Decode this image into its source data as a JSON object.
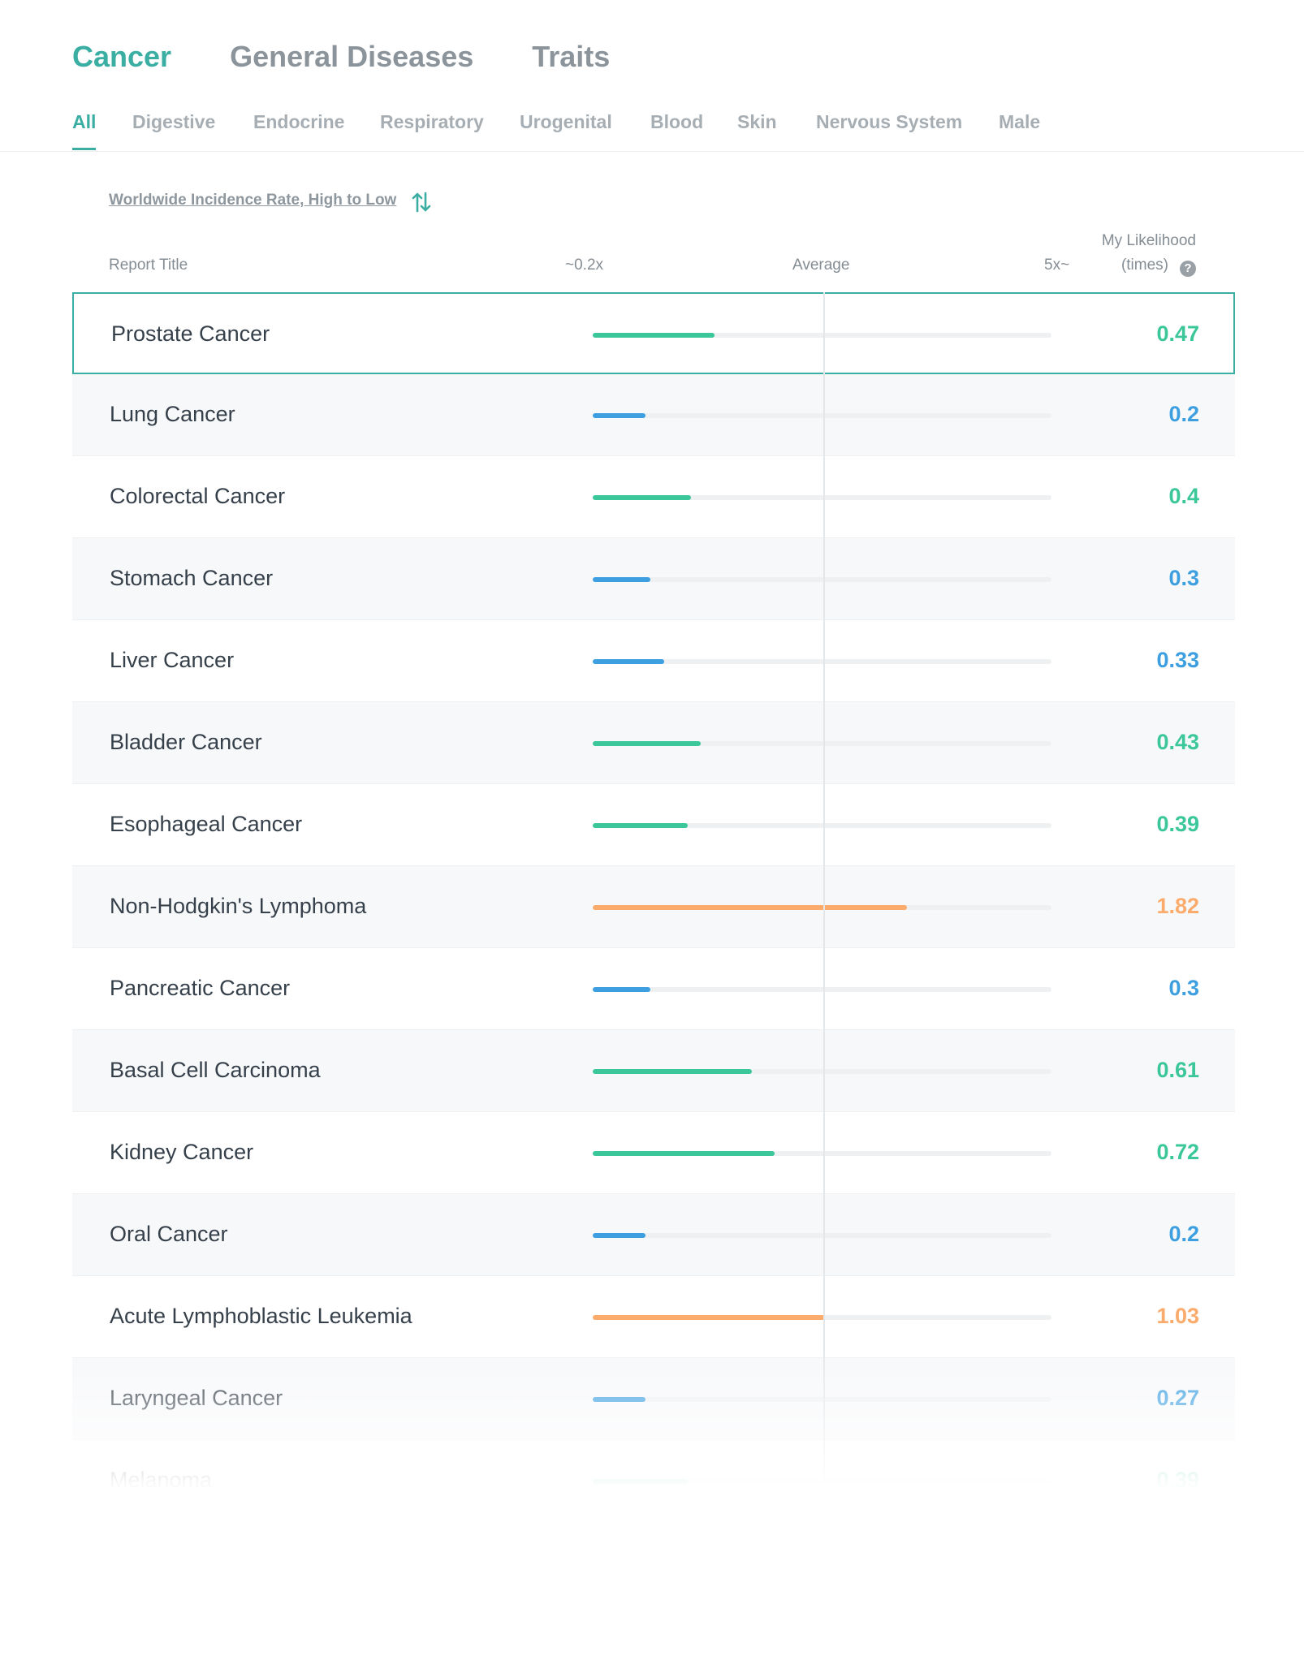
{
  "category_tabs": [
    {
      "label": "Cancer",
      "active": true
    },
    {
      "label": "General Diseases",
      "active": false
    },
    {
      "label": "Traits",
      "active": false
    }
  ],
  "sub_tabs": [
    {
      "label": "All",
      "active": true
    },
    {
      "label": "Digestive",
      "active": false
    },
    {
      "label": "Endocrine",
      "active": false
    },
    {
      "label": "Respiratory",
      "active": false
    },
    {
      "label": "Urogenital",
      "active": false
    },
    {
      "label": "Blood",
      "active": false
    },
    {
      "label": "Skin",
      "active": false
    },
    {
      "label": "Nervous System",
      "active": false
    },
    {
      "label": "Male",
      "active": false
    }
  ],
  "sort": {
    "label": "Worldwide Incidence Rate, High to Low",
    "icon": "sort-arrows-icon"
  },
  "columns": {
    "title": "Report Title",
    "low": "~0.2x",
    "avg": "Average",
    "high": "5x~",
    "likelihood_line1": "My Likelihood",
    "likelihood_line2": "(times)",
    "help_icon": "question-circle-icon"
  },
  "colors": {
    "accent": "#3aaea2",
    "low": "#3d9fe0",
    "moderate": "#3cc79a",
    "high": "#fbab6c"
  },
  "rows": [
    {
      "title": "Prostate Cancer",
      "value": "0.47",
      "fill": 0.265,
      "level": "moderate",
      "selected": true
    },
    {
      "title": "Lung Cancer",
      "value": "0.2",
      "fill": 0.115,
      "level": "low"
    },
    {
      "title": "Colorectal Cancer",
      "value": "0.4",
      "fill": 0.215,
      "level": "moderate"
    },
    {
      "title": "Stomach Cancer",
      "value": "0.3",
      "fill": 0.125,
      "level": "low"
    },
    {
      "title": "Liver Cancer",
      "value": "0.33",
      "fill": 0.155,
      "level": "low"
    },
    {
      "title": "Bladder Cancer",
      "value": "0.43",
      "fill": 0.235,
      "level": "moderate"
    },
    {
      "title": "Esophageal Cancer",
      "value": "0.39",
      "fill": 0.207,
      "level": "moderate"
    },
    {
      "title": "Non-Hodgkin's Lymphoma",
      "value": "1.82",
      "fill": 0.685,
      "level": "high"
    },
    {
      "title": "Pancreatic Cancer",
      "value": "0.3",
      "fill": 0.125,
      "level": "low"
    },
    {
      "title": "Basal Cell Carcinoma",
      "value": "0.61",
      "fill": 0.347,
      "level": "moderate"
    },
    {
      "title": "Kidney Cancer",
      "value": "0.72",
      "fill": 0.397,
      "level": "moderate"
    },
    {
      "title": "Oral Cancer",
      "value": "0.2",
      "fill": 0.115,
      "level": "low"
    },
    {
      "title": "Acute Lymphoblastic Leukemia",
      "value": "1.03",
      "fill": 0.507,
      "level": "high"
    },
    {
      "title": "Laryngeal Cancer",
      "value": "0.27",
      "fill": 0.115,
      "level": "low"
    },
    {
      "title": "Melanoma",
      "value": "0.39",
      "fill": 0.207,
      "level": "moderate"
    }
  ]
}
